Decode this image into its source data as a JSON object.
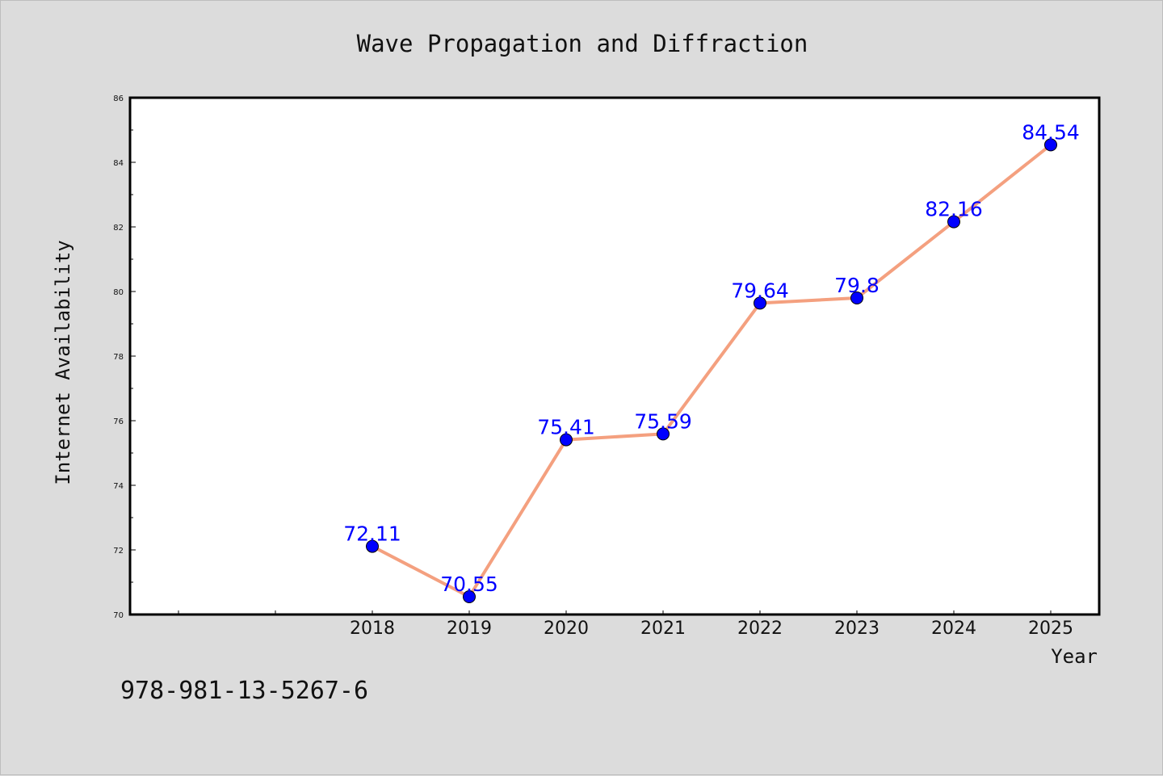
{
  "chart_data": {
    "type": "line",
    "title": "Wave Propagation and Diffraction",
    "xlabel": "Year",
    "ylabel": "Internet Availability",
    "x": [
      "2018",
      "2019",
      "2020",
      "2021",
      "2022",
      "2023",
      "2024",
      "2025"
    ],
    "series": [
      {
        "values": [
          72.11,
          70.55,
          75.41,
          75.59,
          79.64,
          79.8,
          82.16,
          84.54
        ],
        "labels": [
          "72.11",
          "70.55",
          "75.41",
          "75.59",
          "79.64",
          "79.8",
          "82.16",
          "84.54"
        ],
        "line_color": "#f4a07f",
        "marker_color": "#0000ff"
      }
    ],
    "ylim": [
      70,
      86
    ],
    "yticks": [
      70,
      72,
      74,
      76,
      78,
      80,
      82,
      84,
      86
    ],
    "ytick_labels": [
      "70",
      "72",
      "74",
      "76",
      "78",
      "80",
      "82",
      "84",
      "86"
    ],
    "xlim_slots": 10,
    "first_category_slot": 2,
    "grid": false,
    "legend": "none"
  },
  "annotation": {
    "isbn": "978-981-13-5267-6"
  },
  "colors": {
    "background": "#dcdcdc",
    "plot_background": "#ffffff",
    "line": "#f4a07f",
    "marker": "#0000ff",
    "data_label": "#0000ff"
  }
}
